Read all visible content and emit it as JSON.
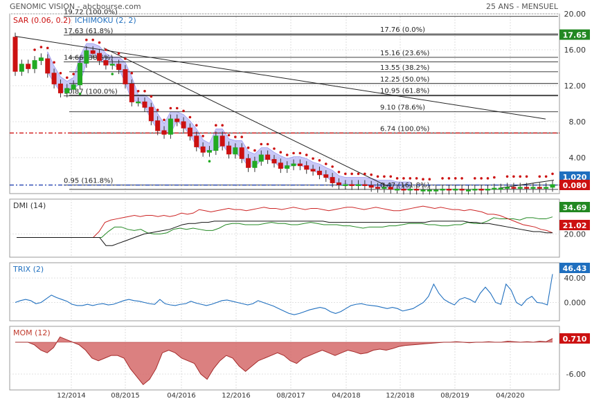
{
  "header": {
    "title": "GENOMIC VISION - abcbourse.com",
    "period": "25 ANS - MENSUEL"
  },
  "colors": {
    "up": "#22aa22",
    "down": "#cc1111",
    "sar": "#cc1111",
    "ichimoku": "#8888ee",
    "dmi_plus": "#228822",
    "dmi_minus": "#cc2222",
    "adx": "#111111",
    "trix": "#1f6fbf",
    "mom": "#c0392b",
    "price_badge": "#228822",
    "blue_badge": "#1f6fbf"
  },
  "chart_data": [
    {
      "panel": "price",
      "type": "candlestick",
      "legend": {
        "sar": "SAR (0.06, 0.2)",
        "ichimoku": "ICHIMOKU (2, 2)"
      },
      "ylim": [
        0,
        20
      ],
      "yticks": [
        "20.00",
        "16.00",
        "12.00",
        "8.00",
        "4.00"
      ],
      "xticks": [
        "12/2014",
        "08/2015",
        "04/2016",
        "12/2016",
        "08/2017",
        "04/2018",
        "12/2018",
        "08/2019",
        "04/2020"
      ],
      "candles": [
        [
          17.4,
          13.6
        ],
        [
          13.6,
          14.4
        ],
        [
          14.4,
          13.9
        ],
        [
          13.9,
          14.8
        ],
        [
          14.8,
          15.1
        ],
        [
          15.0,
          13.4
        ],
        [
          13.4,
          12.2
        ],
        [
          12.2,
          11.2
        ],
        [
          11.2,
          11.7
        ],
        [
          11.6,
          12.1
        ],
        [
          12.1,
          14.5
        ],
        [
          14.5,
          15.9
        ],
        [
          15.9,
          15.6
        ],
        [
          15.6,
          14.8
        ],
        [
          14.8,
          14.3
        ],
        [
          14.3,
          14.4
        ],
        [
          14.4,
          13.8
        ],
        [
          13.8,
          12.2
        ],
        [
          12.2,
          10.2
        ],
        [
          10.2,
          10.2
        ],
        [
          10.2,
          9.6
        ],
        [
          9.6,
          8.1
        ],
        [
          8.1,
          7.0
        ],
        [
          7.0,
          6.6
        ],
        [
          6.6,
          8.3
        ],
        [
          8.3,
          8.0
        ],
        [
          8.0,
          7.3
        ],
        [
          7.3,
          6.4
        ],
        [
          6.4,
          5.2
        ],
        [
          5.2,
          4.6
        ],
        [
          4.6,
          4.8
        ],
        [
          4.8,
          6.4
        ],
        [
          6.4,
          5.3
        ],
        [
          5.3,
          4.4
        ],
        [
          4.4,
          5.1
        ],
        [
          5.1,
          3.9
        ],
        [
          3.9,
          2.9
        ],
        [
          2.9,
          3.6
        ],
        [
          3.6,
          4.3
        ],
        [
          4.3,
          3.8
        ],
        [
          3.8,
          3.4
        ],
        [
          3.4,
          2.8
        ],
        [
          2.8,
          3.1
        ],
        [
          3.1,
          3.3
        ],
        [
          3.3,
          3.1
        ],
        [
          3.1,
          2.7
        ],
        [
          2.7,
          2.5
        ],
        [
          2.5,
          2.1
        ],
        [
          2.1,
          1.8
        ],
        [
          1.8,
          1.2
        ],
        [
          1.2,
          1.0
        ],
        [
          1.0,
          1.0
        ],
        [
          1.0,
          0.9
        ],
        [
          0.9,
          1.0
        ],
        [
          1.0,
          0.9
        ],
        [
          0.9,
          0.7
        ],
        [
          0.7,
          0.6
        ],
        [
          0.6,
          0.7
        ],
        [
          0.7,
          0.5
        ],
        [
          0.5,
          0.5
        ],
        [
          0.5,
          0.4
        ],
        [
          0.4,
          0.5
        ],
        [
          0.5,
          0.4
        ],
        [
          0.4,
          0.4
        ],
        [
          0.4,
          0.4
        ],
        [
          0.4,
          0.4
        ],
        [
          0.4,
          0.5
        ],
        [
          0.5,
          0.4
        ],
        [
          0.4,
          0.5
        ],
        [
          0.5,
          0.4
        ],
        [
          0.4,
          0.4
        ],
        [
          0.4,
          0.5
        ],
        [
          0.5,
          0.4
        ],
        [
          0.4,
          0.5
        ],
        [
          0.5,
          0.6
        ],
        [
          0.6,
          0.6
        ],
        [
          0.6,
          0.7
        ],
        [
          0.7,
          0.6
        ],
        [
          0.6,
          0.7
        ],
        [
          0.7,
          0.6
        ],
        [
          0.6,
          0.7
        ],
        [
          0.7,
          0.6
        ],
        [
          0.6,
          0.7
        ],
        [
          0.7,
          1.0
        ]
      ],
      "fibonacci": [
        {
          "label": "17.63  (61.8%)",
          "value": 17.63,
          "side": "left"
        },
        {
          "label": "14.66  (38.6%)",
          "value": 14.66,
          "side": "left"
        },
        {
          "label": "10.87  (100.0%)",
          "value": 10.87,
          "side": "left"
        },
        {
          "label": "0.95  (161.8%)",
          "value": 0.95,
          "side": "left"
        },
        {
          "label": "19.72  (100.0%)",
          "value": 19.72,
          "side": "left"
        },
        {
          "label": "17.76  (0.0%)",
          "value": 17.76,
          "side": "right"
        },
        {
          "label": "15.16  (23.6%)",
          "value": 15.16,
          "side": "right"
        },
        {
          "label": "13.55  (38.2%)",
          "value": 13.55,
          "side": "right"
        },
        {
          "label": "12.25  (50.0%)",
          "value": 12.25,
          "side": "right"
        },
        {
          "label": "10.95  (61.8%)",
          "value": 10.95,
          "side": "right"
        },
        {
          "label": "9.10  (78.6%)",
          "value": 9.1,
          "side": "right"
        },
        {
          "label": "6.74  (100.0%)",
          "value": 6.74,
          "side": "right"
        },
        {
          "label": "0.47  (161.8%)",
          "value": 0.47,
          "side": "right"
        }
      ],
      "red_line": 6.74,
      "blue_line": 0.95,
      "badges": [
        {
          "text": "17.65",
          "value": 17.65,
          "color": "green"
        },
        {
          "text": "1.020",
          "value": 1.02,
          "color": "blue"
        },
        {
          "text": "0.080",
          "value": 0.08,
          "color": "red"
        }
      ]
    },
    {
      "panel": "dmi",
      "type": "line",
      "legend": "DMI (14)",
      "yticks": [
        "20.00"
      ],
      "ylim": [
        0,
        50
      ],
      "series": [
        {
          "name": "DI+",
          "values": [
            17,
            17,
            17,
            17,
            17,
            17,
            17,
            17,
            17,
            17,
            17,
            17,
            17,
            17,
            22,
            26,
            26,
            24,
            23,
            24,
            21,
            20,
            20,
            21,
            24,
            25,
            24,
            25,
            24,
            23,
            23,
            25,
            28,
            29,
            29,
            28,
            28,
            28,
            29,
            30,
            29,
            29,
            28,
            28,
            29,
            30,
            29,
            28,
            28,
            28,
            27,
            27,
            26,
            25,
            26,
            26,
            26,
            27,
            27,
            28,
            29,
            29,
            29,
            28,
            28,
            27,
            27,
            28,
            28,
            30,
            29,
            29,
            31,
            34,
            33,
            33,
            33,
            32,
            34,
            34,
            33,
            33,
            34.7
          ]
        },
        {
          "name": "DI-",
          "values": [
            17,
            17,
            17,
            17,
            17,
            17,
            17,
            17,
            17,
            17,
            17,
            17,
            17,
            17,
            22,
            30,
            32,
            33,
            34,
            35,
            36,
            35,
            36,
            36,
            35,
            36,
            35,
            36,
            38,
            37,
            38,
            41,
            40,
            39,
            40,
            41,
            42,
            41,
            41,
            40,
            41,
            42,
            43,
            42,
            42,
            41,
            42,
            43,
            42,
            41,
            42,
            42,
            41,
            40,
            41,
            42,
            43,
            43,
            42,
            41,
            42,
            43,
            42,
            41,
            40,
            40,
            41,
            42,
            43,
            44,
            43,
            42,
            43,
            42,
            41,
            41,
            40,
            41,
            40,
            39,
            37,
            37,
            36,
            34,
            32,
            30,
            28,
            27,
            26,
            24,
            23,
            21.02
          ]
        },
        {
          "name": "ADX",
          "values": [
            17,
            17,
            17,
            17,
            17,
            17,
            17,
            17,
            17,
            17,
            17,
            17,
            17,
            17,
            10,
            10,
            12,
            14,
            16,
            18,
            20,
            21,
            22,
            23,
            24,
            26,
            28,
            29,
            29,
            30,
            30,
            31,
            31,
            31,
            31,
            31,
            31,
            31,
            31,
            31,
            31,
            31,
            31,
            31,
            31,
            31,
            31,
            31,
            31,
            30,
            30,
            30,
            30,
            30,
            30,
            30,
            30,
            30,
            30,
            30,
            30,
            30,
            30,
            30,
            30,
            31,
            31,
            31,
            31,
            31,
            31,
            30,
            30,
            29,
            29,
            28,
            27,
            26,
            25,
            24,
            23,
            22,
            22,
            21,
            21
          ]
        }
      ],
      "badges": [
        {
          "text": "34.69",
          "color": "green"
        },
        {
          "text": "21.02",
          "color": "red"
        }
      ]
    },
    {
      "panel": "trix",
      "type": "line",
      "legend": "TRIX (2)",
      "yticks": [
        "40.00",
        "0.000"
      ],
      "ylim": [
        -30,
        65
      ],
      "values": [
        0,
        3,
        5,
        3,
        -2,
        0,
        6,
        12,
        8,
        5,
        2,
        -3,
        -5,
        -5,
        -3,
        -5,
        -3,
        -2,
        -4,
        -3,
        0,
        3,
        5,
        3,
        2,
        0,
        -2,
        -3,
        5,
        -2,
        -4,
        -5,
        -3,
        -2,
        2,
        -1,
        -3,
        -5,
        -3,
        0,
        3,
        4,
        2,
        0,
        -2,
        -4,
        -2,
        3,
        0,
        -3,
        -6,
        -10,
        -14,
        -18,
        -20,
        -18,
        -15,
        -12,
        -10,
        -8,
        -10,
        -15,
        -18,
        -15,
        -10,
        -5,
        -3,
        -2,
        -4,
        -5,
        -6,
        -8,
        -10,
        -8,
        -10,
        -14,
        -12,
        -10,
        -5,
        0,
        10,
        30,
        15,
        5,
        0,
        -4,
        5,
        8,
        5,
        0,
        15,
        25,
        15,
        0,
        -3,
        30,
        20,
        0,
        -5,
        5,
        10,
        0,
        -1,
        -4,
        46.43
      ],
      "badges": [
        {
          "text": "46.43",
          "color": "blue"
        }
      ]
    },
    {
      "panel": "mom",
      "type": "area",
      "legend": "MOM (12)",
      "yticks": [
        "-6.00"
      ],
      "ylim": [
        -9,
        3
      ],
      "values": [
        0,
        0,
        0,
        -0.5,
        -1.5,
        -2,
        -1,
        1,
        0.5,
        0,
        -0.5,
        -1.5,
        -3,
        -3.5,
        -3,
        -2.5,
        -2.5,
        -3,
        -5,
        -6.5,
        -8,
        -7,
        -5,
        -2,
        -1.5,
        -2,
        -3,
        -3.5,
        -4,
        -6,
        -7,
        -5,
        -3.5,
        -2.5,
        -3,
        -4.5,
        -5.5,
        -4.5,
        -3.5,
        -3,
        -2.5,
        -2,
        -2.5,
        -3.5,
        -4,
        -3,
        -2.5,
        -2,
        -1.5,
        -2,
        -2.5,
        -2,
        -1.5,
        -1.8,
        -2.2,
        -2,
        -1.5,
        -1.3,
        -1.5,
        -1.2,
        -0.8,
        -0.6,
        -0.5,
        -0.4,
        -0.3,
        -0.2,
        -0.1,
        0,
        0,
        0.1,
        0,
        -0.1,
        0,
        0,
        0.1,
        0,
        0,
        0.2,
        0.1,
        0,
        0.1,
        0,
        0.2,
        0.1,
        0.71
      ],
      "badges": [
        {
          "text": "0.710",
          "color": "red"
        }
      ]
    }
  ]
}
